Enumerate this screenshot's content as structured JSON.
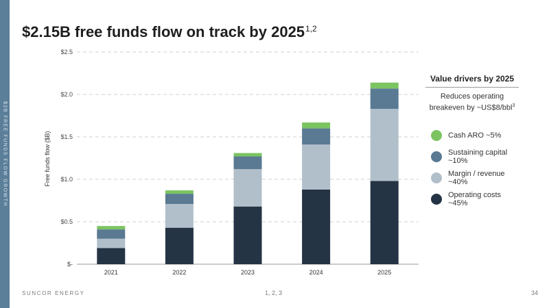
{
  "side_label": "$2B FREE FUNDS FLOW GROWTH",
  "title": {
    "text": "$2.15B free funds flow on track by 2025",
    "superscript": "1,2"
  },
  "chart_data": {
    "type": "bar",
    "stacked": true,
    "categories": [
      "2021",
      "2022",
      "2023",
      "2024",
      "2025"
    ],
    "ylabel": "Free funds flow ($B)",
    "ylim": [
      0,
      2.5
    ],
    "yticks": [
      0,
      0.5,
      1.0,
      1.5,
      2.0,
      2.5
    ],
    "ytick_labels": [
      "$-",
      "$0.5",
      "$1.0",
      "$1.5",
      "$2.0",
      "$2.5"
    ],
    "grid": true,
    "legend_position": "right",
    "series": [
      {
        "name": "Operating costs ~45%",
        "values": [
          0.19,
          0.43,
          0.68,
          0.88,
          0.98
        ],
        "color": "#243444"
      },
      {
        "name": "Margin / revenue ~40%",
        "values": [
          0.11,
          0.28,
          0.44,
          0.53,
          0.85
        ],
        "color": "#b1bfcb"
      },
      {
        "name": "Sustaining capital ~10%",
        "values": [
          0.11,
          0.12,
          0.15,
          0.19,
          0.24
        ],
        "color": "#5a7a93"
      },
      {
        "name": "Cash ARO ~5%",
        "values": [
          0.04,
          0.04,
          0.04,
          0.07,
          0.07
        ],
        "color": "#7cc462"
      }
    ]
  },
  "legend": {
    "title": "Value drivers by 2025",
    "subtitle": "Reduces operating breakeven by ~US$8/bbl",
    "subtitle_sup": "3",
    "items": [
      {
        "label": "Cash ARO ~5%",
        "color": "#7cc462"
      },
      {
        "label": "Sustaining capital ~10%",
        "color": "#5a7a93"
      },
      {
        "label": "Margin / revenue ~40%",
        "color": "#b1bfcb"
      },
      {
        "label": "Operating costs ~45%",
        "color": "#243444"
      }
    ]
  },
  "footer": {
    "company": "SUNCOR ENERGY",
    "notes": "1, 2, 3",
    "page": "34"
  }
}
